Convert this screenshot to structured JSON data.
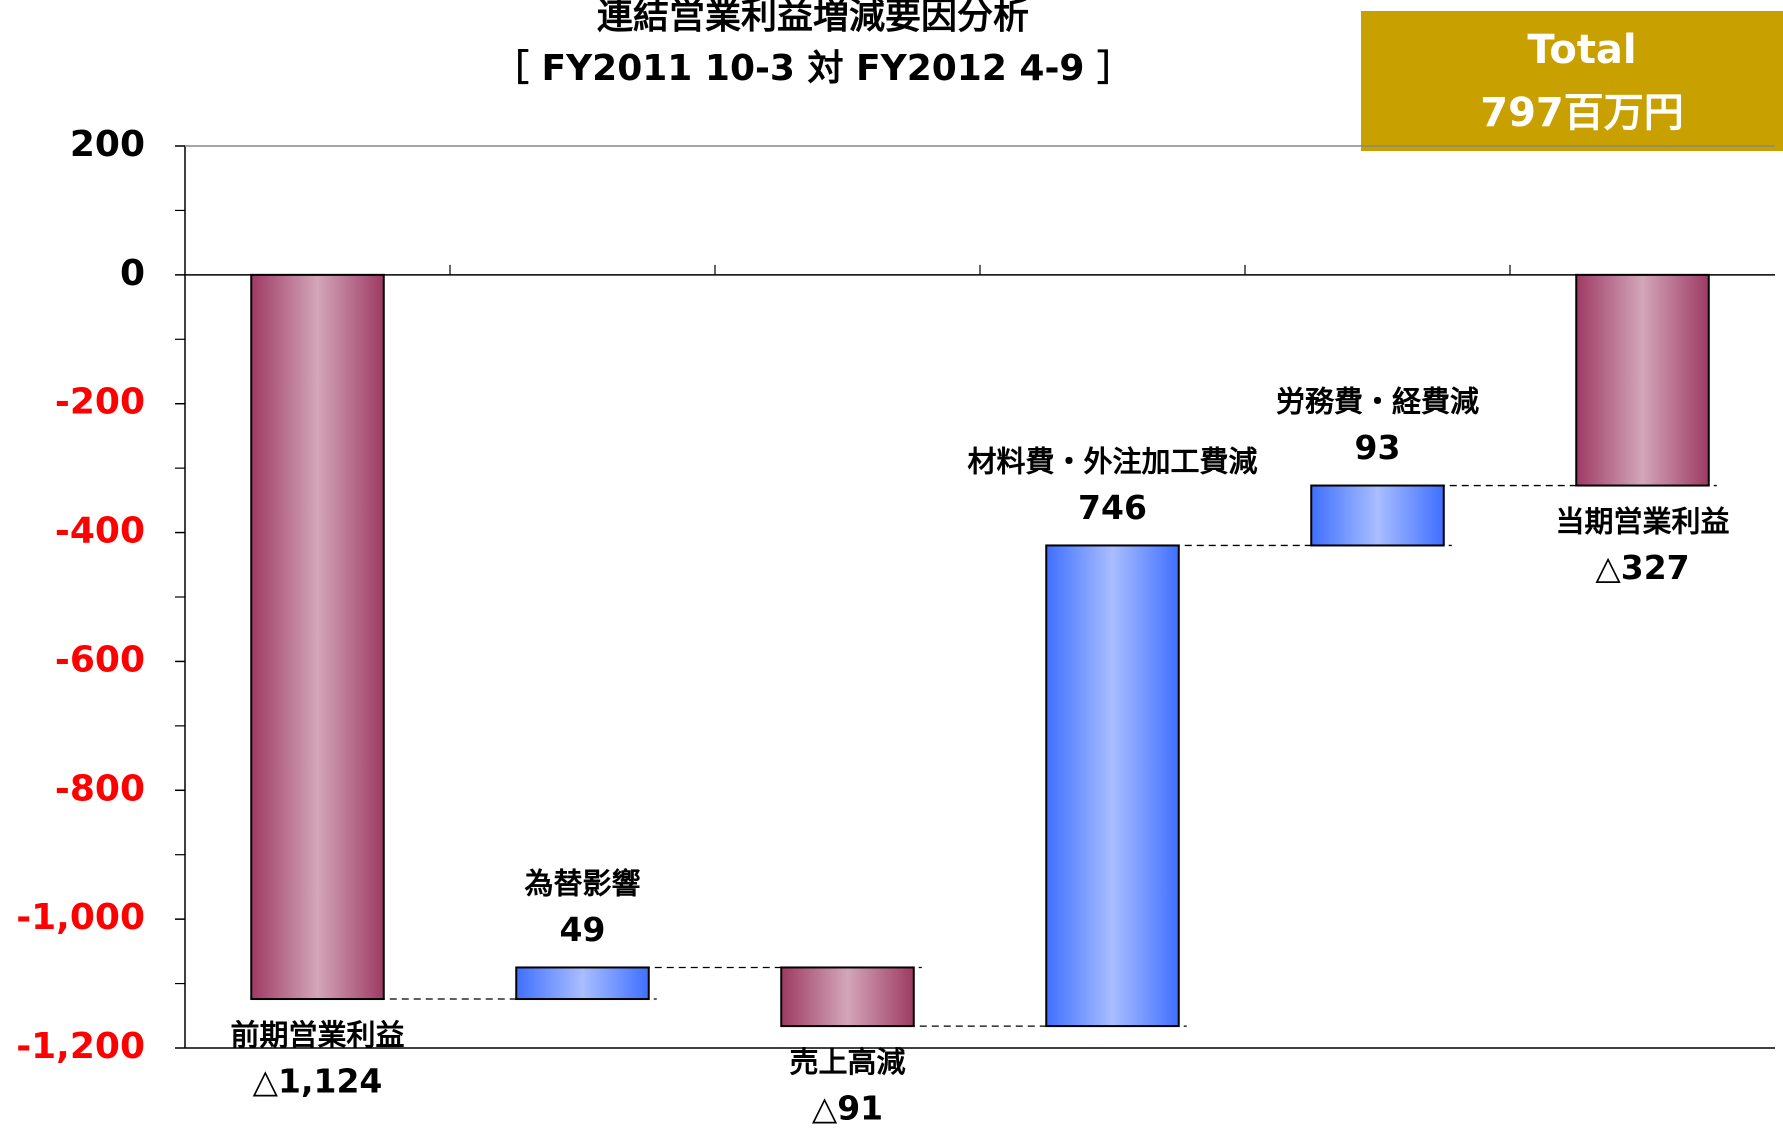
{
  "chart_data": {
    "type": "waterfall",
    "title": "連結営業利益増減要因分析",
    "subtitle": "［ FY2011 10-3 対 FY2012 4-9 ］",
    "annotation": {
      "label": "Total",
      "text": "797百万円",
      "color": "#c8a000"
    },
    "categories": [
      "前期営業利益",
      "為替影響",
      "売上高減",
      "材料費・外注加工費減",
      "労務費・経費減",
      "当期営業利益"
    ],
    "values": [
      -1124,
      49,
      -91,
      746,
      93,
      -327
    ],
    "value_labels": [
      "△1,124",
      "49",
      "△91",
      "746",
      "93",
      "△327"
    ],
    "measures": [
      "total",
      "relative",
      "relative",
      "relative",
      "relative",
      "total"
    ],
    "total_color": "#9e3a63",
    "decrease_color": "#9e3a63",
    "increase_color": "#3f6fff",
    "negative_tick_color": "#ff0000",
    "ylim": [
      -1200,
      200
    ],
    "yticks": [
      200,
      0,
      -200,
      -400,
      -600,
      -800,
      {
        "value": -1000,
        "label": "-1,000"
      },
      {
        "value": -1200,
        "label": "-1,200"
      }
    ],
    "grid": false
  }
}
